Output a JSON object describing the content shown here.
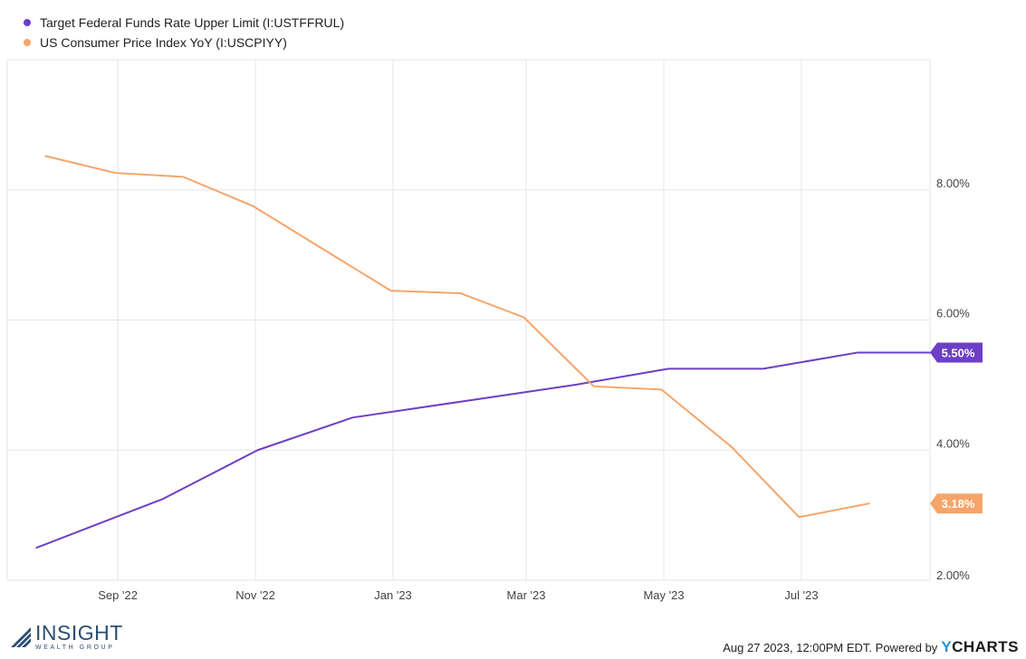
{
  "legend": [
    {
      "label": "Target Federal Funds Rate Upper Limit (I:USTFFRUL)",
      "color": "#6c3fc5"
    },
    {
      "label": "US Consumer Price Index YoY (I:USCPIYY)",
      "color": "#f5a56a"
    }
  ],
  "chart_data": {
    "type": "line",
    "x_ticks": [
      "Sep '22",
      "Nov '22",
      "Jan '23",
      "Mar '23",
      "May '23",
      "Jul '23"
    ],
    "y_ticks": [
      "2.00%",
      "4.00%",
      "6.00%",
      "8.00%"
    ],
    "ylim": [
      2.0,
      10.0
    ],
    "grid": true,
    "series": [
      {
        "name": "Target Federal Funds Rate Upper Limit (I:USTFFRUL)",
        "color": "#6c3fc5",
        "last_label": "5.50%",
        "points": [
          [
            "2022-07-27",
            2.5
          ],
          [
            "2022-09-21",
            3.25
          ],
          [
            "2022-11-02",
            4.0
          ],
          [
            "2022-12-14",
            4.5
          ],
          [
            "2023-02-01",
            4.75
          ],
          [
            "2023-03-22",
            5.0
          ],
          [
            "2023-05-03",
            5.25
          ],
          [
            "2023-06-14",
            5.25
          ],
          [
            "2023-07-26",
            5.5
          ],
          [
            "2023-08-27",
            5.5
          ]
        ]
      },
      {
        "name": "US Consumer Price Index YoY (I:USCPIYY)",
        "color": "#f5a56a",
        "last_label": "3.18%",
        "points": [
          [
            "2022-07-31",
            8.52
          ],
          [
            "2022-08-31",
            8.26
          ],
          [
            "2022-09-30",
            8.2
          ],
          [
            "2022-10-31",
            7.75
          ],
          [
            "2022-11-30",
            7.11
          ],
          [
            "2022-12-31",
            6.45
          ],
          [
            "2023-01-31",
            6.41
          ],
          [
            "2023-02-28",
            6.04
          ],
          [
            "2023-03-31",
            4.98
          ],
          [
            "2023-04-30",
            4.93
          ],
          [
            "2023-05-31",
            4.05
          ],
          [
            "2023-06-30",
            2.97
          ],
          [
            "2023-07-31",
            3.18
          ]
        ]
      }
    ]
  },
  "footer": {
    "text": "Aug 27 2023, 12:00PM EDT. Powered by",
    "brand_y": "Y",
    "brand_rest": "CHARTS"
  },
  "logo": {
    "main": "INSIGHT",
    "sub": "WEALTH GROUP"
  }
}
